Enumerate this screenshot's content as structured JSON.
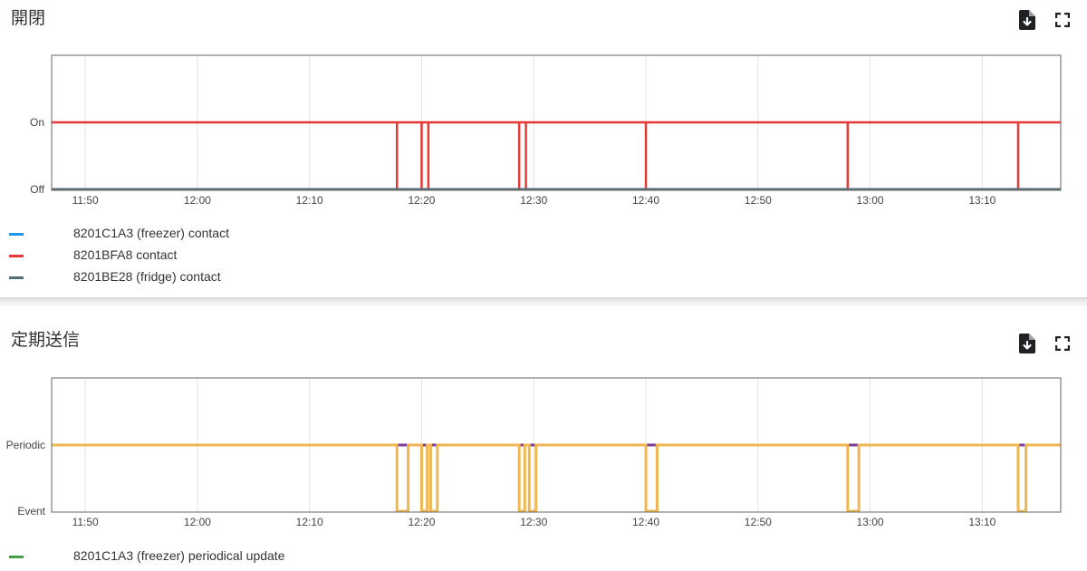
{
  "charts": [
    {
      "title": "開閉",
      "chart_data": {
        "type": "line",
        "x_ticks": [
          "11:50",
          "12:00",
          "12:10",
          "12:20",
          "12:30",
          "12:40",
          "12:50",
          "13:00",
          "13:10"
        ],
        "y_ticks": [
          "Off",
          "On"
        ],
        "xlim": [
          "11:47",
          "13:17"
        ],
        "series": [
          {
            "name": "8201C1A3 (freezer) contact",
            "color": "#2196f3",
            "states": [
              {
                "from": "11:47",
                "to": "13:17",
                "state": "Off"
              }
            ]
          },
          {
            "name": "8201BFA8 contact",
            "color": "#e53935",
            "base_state": "On",
            "drops_to_off_at": [
              "12:17.8",
              "12:20.0",
              "12:20.6",
              "12:28.7",
              "12:29.3",
              "12:40.0",
              "12:58.0",
              "13:13.2"
            ]
          },
          {
            "name": "8201BE28 (fridge) contact",
            "color": "#546e7a",
            "states": [
              {
                "from": "11:47",
                "to": "13:17",
                "state": "Off"
              }
            ]
          }
        ]
      },
      "legend": [
        {
          "label": "8201C1A3 (freezer) contact",
          "color": "#2196f3"
        },
        {
          "label": "8201BFA8 contact",
          "color": "#e53935"
        },
        {
          "label": "8201BE28 (fridge) contact",
          "color": "#546e7a"
        }
      ]
    },
    {
      "title": "定期送信",
      "chart_data": {
        "type": "line",
        "x_ticks": [
          "11:50",
          "12:00",
          "12:10",
          "12:20",
          "12:30",
          "12:40",
          "12:50",
          "13:00",
          "13:10"
        ],
        "y_ticks": [
          "Event",
          "Periodic"
        ],
        "xlim": [
          "11:47",
          "13:17"
        ],
        "series": [
          {
            "name": "8201C1A3 (freezer) periodical update",
            "color": "#43a047",
            "states": [
              {
                "from": "11:47",
                "to": "13:17",
                "state": "Periodic"
              }
            ]
          },
          {
            "color": "#7b3fa0",
            "states": [
              {
                "from": "11:47",
                "to": "13:17",
                "state": "Periodic"
              }
            ]
          },
          {
            "color": "#f0b650",
            "base_state": "Periodic",
            "event_intervals": [
              [
                "12:17.8",
                "12:18.8"
              ],
              [
                "12:20.0",
                "12:20.5"
              ],
              [
                "12:20.8",
                "12:21.4"
              ],
              [
                "12:28.7",
                "12:29.2"
              ],
              [
                "12:29.6",
                "12:30.2"
              ],
              [
                "12:40.0",
                "12:41.0"
              ],
              [
                "12:58.0",
                "12:59.0"
              ],
              [
                "13:13.2",
                "13:13.9"
              ]
            ]
          }
        ]
      },
      "legend": [
        {
          "label": "8201C1A3 (freezer) periodical update",
          "color": "#43a047"
        }
      ]
    }
  ]
}
